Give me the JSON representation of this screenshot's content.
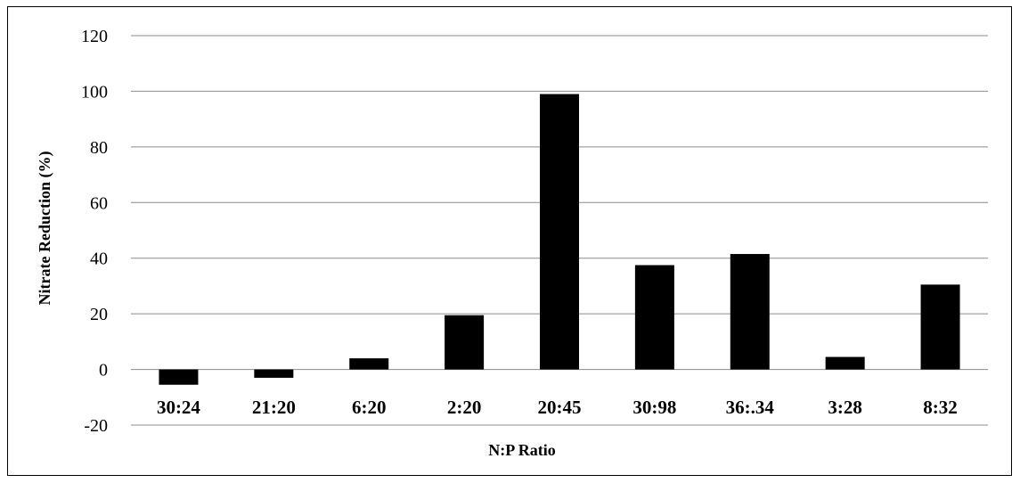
{
  "chart_data": {
    "type": "bar",
    "title": "",
    "xlabel": "N:P Ratio",
    "ylabel": "Nitrate Reduction (%)",
    "ylim": [
      -20,
      120
    ],
    "yticks": [
      -20,
      0,
      20,
      40,
      60,
      80,
      100,
      120
    ],
    "grid": true,
    "legend": "none",
    "bar_color": "#000000",
    "gridline_color": "#8c8c8c",
    "categories": [
      "30:24",
      "21:20",
      "6:20",
      "2:20",
      "20:45",
      "30:98",
      "36:.34",
      "3:28",
      "8:32"
    ],
    "values": [
      -5.5,
      -3,
      4,
      19.5,
      99,
      37.5,
      41.5,
      4.5,
      30.5
    ]
  }
}
